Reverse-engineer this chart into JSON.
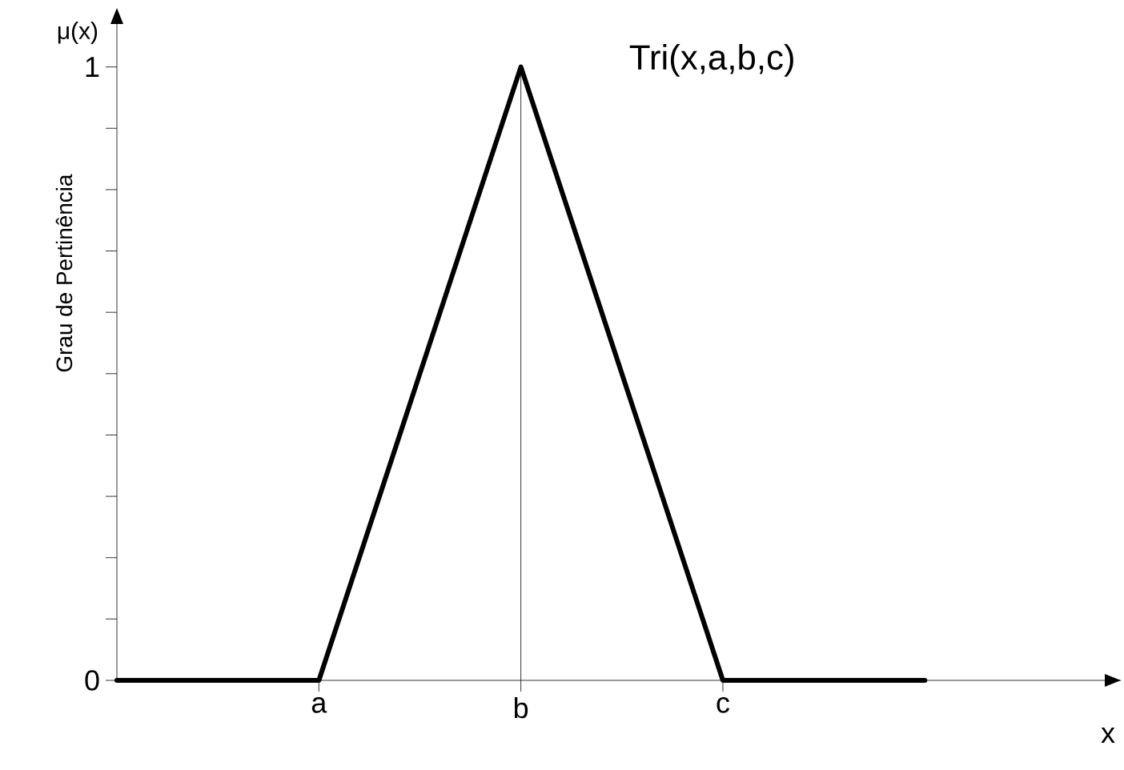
{
  "chart_data": {
    "type": "line",
    "title": "Tri(x,a,b,c)",
    "xlabel": "x",
    "ylabel": "Grau de Pertinência",
    "annotations": [
      "μ(x)"
    ],
    "categories": [
      null,
      "a",
      "b",
      "c",
      null
    ],
    "series": [
      {
        "color": "#000000",
        "values": [
          0,
          0,
          1,
          0,
          0
        ]
      }
    ],
    "ylim": [
      0,
      1.07
    ],
    "yticks": [
      0,
      {
        "value": 0.1,
        "label": null
      },
      {
        "value": 0.2,
        "label": null
      },
      {
        "value": 0.3,
        "label": null
      },
      {
        "value": 0.4,
        "label": null
      },
      {
        "value": 0.5,
        "label": null
      },
      {
        "value": 0.6,
        "label": null
      },
      {
        "value": 0.7,
        "label": null
      },
      {
        "value": 0.8,
        "label": null
      },
      {
        "value": 0.9,
        "label": null
      },
      1
    ],
    "ref_lines": [
      {
        "axis": "x",
        "value": "b",
        "color": "#000000"
      }
    ],
    "marker": "none",
    "line_style": "solid"
  }
}
